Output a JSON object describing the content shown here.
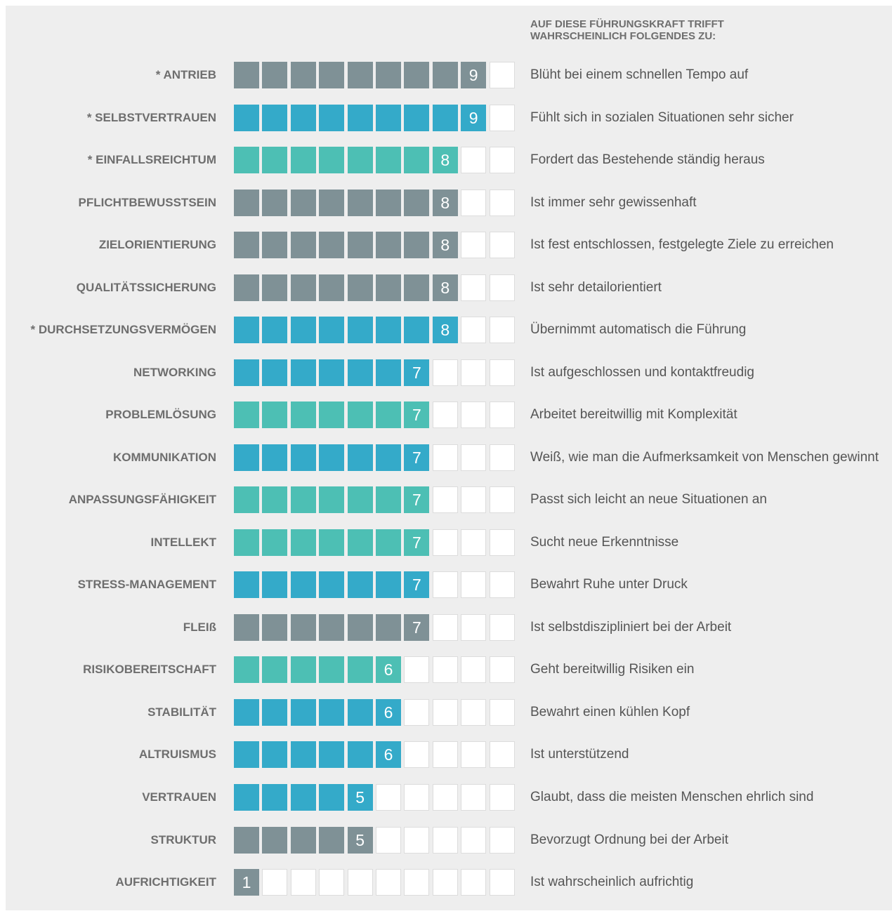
{
  "chart_data": {
    "type": "bar",
    "header": "AUF DIESE FÜHRUNGSKRAFT TRIFFT WAHRSCHEINLICH FOLGENDES ZU:",
    "xlim": [
      0,
      10
    ],
    "categories": [
      "* ANTRIEB",
      "* SELBSTVERTRAUEN",
      "* EINFALLSREICHTUM",
      "PFLICHTBEWUSSTSEIN",
      "ZIELORIENTIERUNG",
      "QUALITÄTSSICHERUNG",
      "* DURCHSETZUNGSVERMÖGEN",
      "NETWORKING",
      "PROBLEMLÖSUNG",
      "KOMMUNIKATION",
      "ANPASSUNGSFÄHIGKEIT",
      "INTELLEKT",
      "STRESS-MANAGEMENT",
      "FLEIß",
      "RISIKOBEREITSCHAFT",
      "STABILITÄT",
      "ALTRUISMUS",
      "VERTRAUEN",
      "STRUKTUR",
      "AUFRICHTIGKEIT"
    ],
    "values": [
      9,
      9,
      8,
      8,
      8,
      8,
      8,
      7,
      7,
      7,
      7,
      7,
      7,
      7,
      6,
      6,
      6,
      5,
      5,
      1
    ],
    "colors": [
      "#7f9196",
      "#34aac9",
      "#4dbfb4",
      "#7f9196",
      "#7f9196",
      "#7f9196",
      "#34aac9",
      "#34aac9",
      "#4dbfb4",
      "#34aac9",
      "#4dbfb4",
      "#4dbfb4",
      "#34aac9",
      "#7f9196",
      "#4dbfb4",
      "#34aac9",
      "#34aac9",
      "#34aac9",
      "#7f9196",
      "#7f9196"
    ],
    "descriptions": [
      "Blüht bei einem schnellen Tempo auf",
      "Fühlt sich in sozialen Situationen sehr sicher",
      "Fordert das Bestehende ständig heraus",
      "Ist immer sehr gewissenhaft",
      "Ist fest entschlossen, festgelegte Ziele zu erreichen",
      "Ist sehr detailorientiert",
      "Übernimmt automatisch die Führung",
      "Ist aufgeschlossen und kontaktfreudig",
      "Arbeitet bereitwillig mit Komplexität",
      "Weiß, wie man die Aufmerksamkeit von Menschen gewinnt",
      "Passt sich leicht an neue Situationen an",
      "Sucht neue Erkenntnisse",
      "Bewahrt Ruhe unter Druck",
      "Ist selbstdiszipliniert bei der Arbeit",
      "Geht bereitwillig Risiken ein",
      "Bewahrt einen kühlen Kopf",
      "Ist unterstützend",
      "Glaubt, dass die meisten Menschen ehrlich sind",
      "Bevorzugt Ordnung bei der Arbeit",
      "Ist wahrscheinlich aufrichtig"
    ]
  }
}
